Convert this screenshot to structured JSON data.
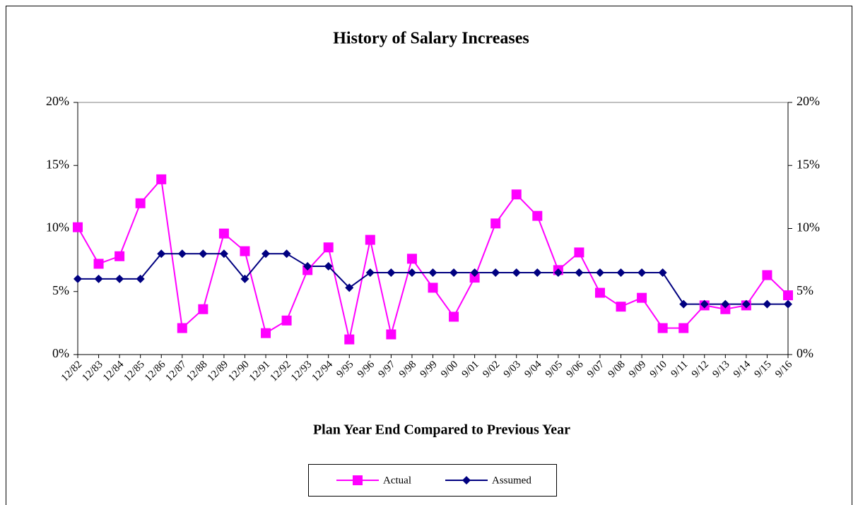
{
  "chart_data": {
    "type": "line",
    "title": "History of Salary Increases",
    "x_label": "Plan Year End Compared to Previous Year",
    "categories": [
      "12/82",
      "12/83",
      "12/84",
      "12/85",
      "12/86",
      "12/87",
      "12/88",
      "12/89",
      "12/90",
      "12/91",
      "12/92",
      "12/93",
      "12/94",
      "9/95",
      "9/96",
      "9/97",
      "9/98",
      "9/99",
      "9/00",
      "9/01",
      "9/02",
      "9/03",
      "9/04",
      "9/05",
      "9/06",
      "9/07",
      "9/08",
      "9/09",
      "9/10",
      "9/11",
      "9/12",
      "9/13",
      "9/14",
      "9/15",
      "9/16"
    ],
    "series": [
      {
        "name": "Actual",
        "color": "#ff00ff",
        "marker": "square",
        "values": [
          10.1,
          7.2,
          7.8,
          12.0,
          13.9,
          2.1,
          3.6,
          9.6,
          8.2,
          1.7,
          2.7,
          6.7,
          8.5,
          1.2,
          9.1,
          1.6,
          7.6,
          5.3,
          3.0,
          6.1,
          10.4,
          12.7,
          11.0,
          6.7,
          8.1,
          4.9,
          3.8,
          4.5,
          2.1,
          2.1,
          3.9,
          3.6,
          3.9,
          6.3,
          4.7
        ]
      },
      {
        "name": "Assumed",
        "color": "#000080",
        "marker": "diamond",
        "values": [
          6,
          6,
          6,
          6,
          8,
          8,
          8,
          8,
          6,
          8,
          8,
          7,
          7,
          5.3,
          6.5,
          6.5,
          6.5,
          6.5,
          6.5,
          6.5,
          6.5,
          6.5,
          6.5,
          6.5,
          6.5,
          6.5,
          6.5,
          6.5,
          6.5,
          4,
          4,
          4,
          4,
          4,
          4
        ]
      }
    ],
    "ylim": [
      0,
      20
    ],
    "yticks": [
      {
        "value": 0,
        "label": "0%"
      },
      {
        "value": 5,
        "label": "5%"
      },
      {
        "value": 10,
        "label": "10%"
      },
      {
        "value": 15,
        "label": "15%"
      },
      {
        "value": 20,
        "label": "20%"
      }
    ],
    "y2lim": [
      0,
      20
    ],
    "y2ticks": [
      {
        "value": 0,
        "label": "0%"
      },
      {
        "value": 5,
        "label": "5%"
      },
      {
        "value": 10,
        "label": "10%"
      },
      {
        "value": 15,
        "label": "15%"
      },
      {
        "value": 20,
        "label": "20%"
      }
    ],
    "legend": "bottom",
    "grid": false
  }
}
